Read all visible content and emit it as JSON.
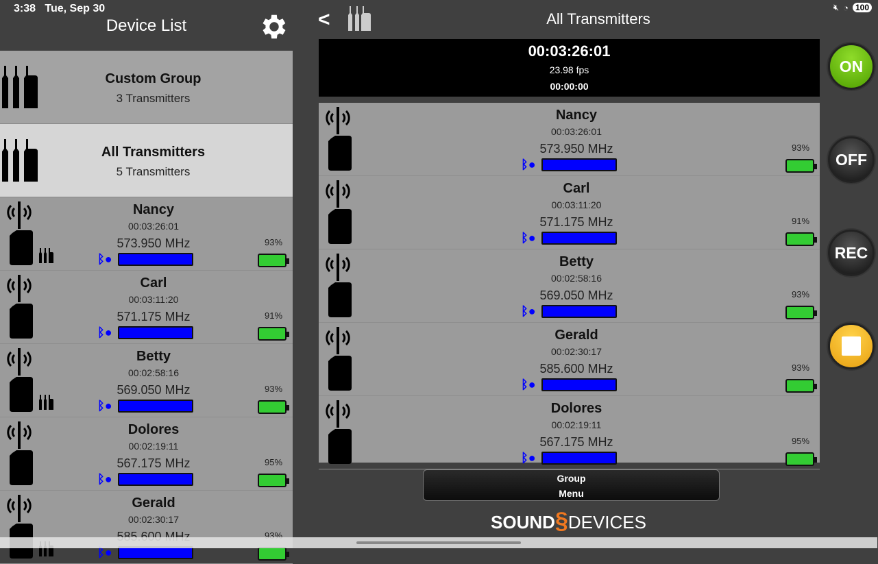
{
  "status_bar": {
    "time": "3:38",
    "date": "Tue, Sep 30",
    "battery": "100"
  },
  "left_panel": {
    "title": "Device List",
    "groups": [
      {
        "name": "Custom Group",
        "count": "3 Transmitters",
        "selected": false
      },
      {
        "name": "All Transmitters",
        "count": "5 Transmitters",
        "selected": true
      }
    ],
    "transmitters": [
      {
        "name": "Nancy",
        "timecode": "00:03:26:01",
        "frequency": "573.950 MHz",
        "battery": "93%",
        "in_group": true
      },
      {
        "name": "Carl",
        "timecode": "00:03:11:20",
        "frequency": "571.175 MHz",
        "battery": "91%",
        "in_group": false
      },
      {
        "name": "Betty",
        "timecode": "00:02:58:16",
        "frequency": "569.050 MHz",
        "battery": "93%",
        "in_group": true
      },
      {
        "name": "Dolores",
        "timecode": "00:02:19:11",
        "frequency": "567.175 MHz",
        "battery": "95%",
        "in_group": false
      },
      {
        "name": "Gerald",
        "timecode": "00:02:30:17",
        "frequency": "585.600 MHz",
        "battery": "93%",
        "in_group": true
      }
    ]
  },
  "main": {
    "title": "All Transmitters",
    "timecode": "00:03:26:01",
    "fps": "23.98 fps",
    "timecode_sub": "00:00:00",
    "transmitters": [
      {
        "name": "Nancy",
        "timecode": "00:03:26:01",
        "frequency": "573.950 MHz",
        "battery": "93%"
      },
      {
        "name": "Carl",
        "timecode": "00:03:11:20",
        "frequency": "571.175 MHz",
        "battery": "91%"
      },
      {
        "name": "Betty",
        "timecode": "00:02:58:16",
        "frequency": "569.050 MHz",
        "battery": "93%"
      },
      {
        "name": "Gerald",
        "timecode": "00:02:30:17",
        "frequency": "585.600 MHz",
        "battery": "93%"
      },
      {
        "name": "Dolores",
        "timecode": "00:02:19:11",
        "frequency": "567.175 MHz",
        "battery": "95%"
      }
    ],
    "controls": {
      "on": "ON",
      "off": "OFF",
      "rec": "REC"
    },
    "group_menu": [
      "Group",
      "Menu"
    ],
    "logo": {
      "part1": "SOUND",
      "part2": "DEVICES"
    }
  },
  "colors": {
    "on": "#5cb800",
    "stop": "#f2b01e",
    "rf_bar": "#0000ff",
    "battery": "#33cc33",
    "bluetooth": "#0000ff"
  }
}
